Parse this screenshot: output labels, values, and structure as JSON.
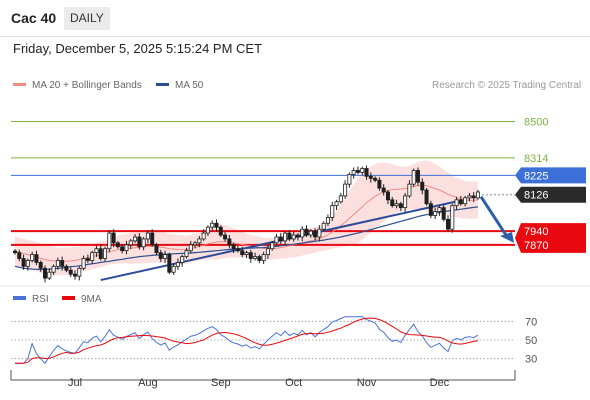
{
  "header": {
    "title": "Cac 40",
    "timeframe": "DAILY"
  },
  "timestamp": "Friday, December 5, 2025 5:15:24 PM CET",
  "legend": {
    "items": [
      {
        "label": "MA 20 + Bollinger Bands",
        "color": "#f28b82"
      },
      {
        "label": "MA 50",
        "color": "#2d4f8f"
      }
    ]
  },
  "credit": "Research © 2025 Trading Central",
  "chart_data": {
    "type": "candlestick",
    "ylim": [
      7680,
      8610
    ],
    "x_labels": [
      "Jul",
      "Aug",
      "Sep",
      "Oct",
      "Nov",
      "Dec"
    ],
    "levels": [
      {
        "value": 8500,
        "label": "8500",
        "color": "#7cb342",
        "style": "line"
      },
      {
        "value": 8314,
        "label": "8314",
        "color": "#7cb342",
        "style": "line"
      },
      {
        "value": 8225,
        "label": "8225",
        "color": "#3d6fd8",
        "style": "line-box"
      },
      {
        "value": 8126,
        "label": "8126",
        "color": "#2b2b2b",
        "style": "box-dotted"
      },
      {
        "value": 7940,
        "label": "7940",
        "color": "#e8080f",
        "style": "thick-box"
      },
      {
        "value": 7870,
        "label": "7870",
        "color": "#e8080f",
        "style": "thick-box"
      }
    ],
    "closes": [
      7830,
      7800,
      7760,
      7790,
      7820,
      7780,
      7750,
      7700,
      7730,
      7760,
      7790,
      7760,
      7740,
      7720,
      7710,
      7750,
      7800,
      7790,
      7830,
      7850,
      7800,
      7850,
      7930,
      7880,
      7860,
      7840,
      7870,
      7890,
      7910,
      7860,
      7900,
      7930,
      7870,
      7830,
      7800,
      7820,
      7730,
      7760,
      7780,
      7810,
      7840,
      7870,
      7880,
      7900,
      7930,
      7960,
      7980,
      7960,
      7920,
      7900,
      7870,
      7850,
      7840,
      7820,
      7830,
      7800,
      7810,
      7790,
      7820,
      7850,
      7880,
      7910,
      7890,
      7930,
      7900,
      7920,
      7910,
      7950,
      7920,
      7940,
      7910,
      7950,
      7980,
      8010,
      8070,
      8090,
      8120,
      8180,
      8230,
      8250,
      8240,
      8260,
      8220,
      8210,
      8200,
      8160,
      8140,
      8100,
      8070,
      8080,
      8060,
      8120,
      8180,
      8250,
      8190,
      8150,
      8080,
      8020,
      8040,
      8060,
      8000,
      7950,
      8070,
      8100,
      8080,
      8110,
      8120,
      8110,
      8140
    ],
    "ma20": [
      7840,
      7830,
      7825,
      7820,
      7815,
      7810,
      7800,
      7795,
      7790,
      7788,
      7785,
      7785,
      7786,
      7788,
      7790,
      7795,
      7800,
      7805,
      7810,
      7815,
      7820,
      7826,
      7835,
      7840,
      7845,
      7848,
      7850,
      7852,
      7855,
      7858,
      7860,
      7862,
      7863,
      7860,
      7858,
      7855,
      7850,
      7848,
      7846,
      7845,
      7846,
      7850,
      7856,
      7862,
      7868,
      7875,
      7880,
      7884,
      7886,
      7886,
      7884,
      7880,
      7876,
      7872,
      7868,
      7864,
      7860,
      7856,
      7852,
      7850,
      7850,
      7852,
      7855,
      7860,
      7865,
      7870,
      7875,
      7880,
      7885,
      7890,
      7895,
      7902,
      7910,
      7920,
      7935,
      7950,
      7968,
      7985,
      8005,
      8025,
      8045,
      8065,
      8085,
      8102,
      8118,
      8130,
      8140,
      8148,
      8152,
      8154,
      8155,
      8158,
      8162,
      8168,
      8172,
      8175,
      8172,
      8165,
      8158,
      8150,
      8140,
      8128,
      8120,
      8112,
      8105,
      8100,
      8098,
      8098,
      8100
    ],
    "band_width": [
      75,
      75,
      75,
      75,
      75,
      75,
      75,
      75,
      75,
      75,
      70,
      70,
      70,
      70,
      70,
      65,
      65,
      65,
      65,
      65,
      65,
      65,
      65,
      70,
      70,
      75,
      75,
      80,
      80,
      85,
      85,
      85,
      85,
      80,
      80,
      80,
      75,
      75,
      75,
      75,
      70,
      70,
      70,
      70,
      75,
      80,
      85,
      90,
      90,
      85,
      80,
      75,
      70,
      65,
      60,
      55,
      55,
      55,
      55,
      55,
      55,
      55,
      55,
      60,
      60,
      65,
      65,
      65,
      65,
      65,
      65,
      65,
      70,
      75,
      85,
      95,
      110,
      125,
      140,
      155,
      165,
      170,
      170,
      170,
      165,
      160,
      150,
      140,
      130,
      120,
      115,
      110,
      110,
      115,
      120,
      125,
      130,
      130,
      125,
      120,
      115,
      110,
      105,
      100,
      100,
      95,
      95,
      95,
      95
    ],
    "ma50": [
      7760,
      7755,
      7750,
      7748,
      7746,
      7745,
      7744,
      7745,
      7746,
      7748,
      7750,
      7752,
      7755,
      7758,
      7760,
      7763,
      7766,
      7770,
      7773,
      7776,
      7780,
      7783,
      7786,
      7790,
      7793,
      7796,
      7800,
      7803,
      7806,
      7810,
      7812,
      7814,
      7816,
      7818,
      7820,
      7822,
      7823,
      7824,
      7825,
      7826,
      7827,
      7828,
      7830,
      7832,
      7834,
      7836,
      7838,
      7840,
      7842,
      7844,
      7846,
      7848,
      7850,
      7851,
      7852,
      7853,
      7854,
      7855,
      7856,
      7858,
      7860,
      7862,
      7865,
      7868,
      7870,
      7873,
      7876,
      7879,
      7882,
      7885,
      7888,
      7891,
      7894,
      7898,
      7902,
      7906,
      7910,
      7915,
      7920,
      7925,
      7930,
      7936,
      7942,
      7948,
      7954,
      7960,
      7966,
      7972,
      7978,
      7984,
      7990,
      7996,
      8002,
      8008,
      8014,
      8020,
      8024,
      8028,
      8032,
      8036,
      8040,
      8043,
      8046,
      8049,
      8052,
      8055,
      8058,
      8061,
      8064
    ],
    "trendlines": [
      {
        "from": [
          "Jul",
          7690
        ],
        "to": [
          "Dec",
          8090
        ],
        "color": "#2d4b9a"
      }
    ],
    "rsi_panel": {
      "legend": [
        {
          "label": "RSI",
          "color": "#4a72d8"
        },
        {
          "label": "9MA",
          "color": "#e8080f"
        }
      ],
      "ylim": [
        20,
        80
      ],
      "ticks": [
        70,
        50,
        30
      ]
    }
  }
}
